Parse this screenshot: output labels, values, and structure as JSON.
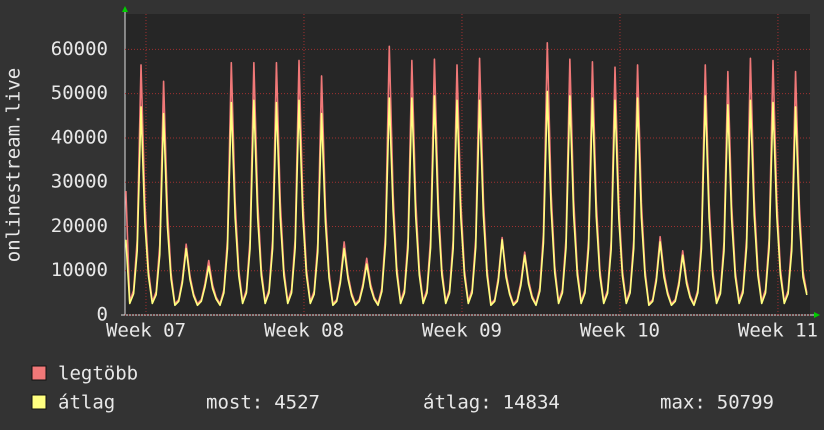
{
  "chart_data": {
    "type": "line",
    "y_label": "onlinestream.live",
    "xlim": [
      0,
      30.35
    ],
    "ylim": [
      0,
      68000
    ],
    "yticks": [
      0,
      10000,
      20000,
      30000,
      40000,
      50000,
      60000
    ],
    "xticks": [
      {
        "value": 0.93,
        "label": "Week 07"
      },
      {
        "value": 7.93,
        "label": "Week 08"
      },
      {
        "value": 14.93,
        "label": "Week 09"
      },
      {
        "value": 21.93,
        "label": "Week 10"
      },
      {
        "value": 28.93,
        "label": "Week 11"
      }
    ],
    "grid": true,
    "x": [
      0.04,
      0.21,
      0.38,
      0.54,
      0.71,
      0.88,
      1.04,
      1.21,
      1.38,
      1.54,
      1.71,
      1.88,
      2.04,
      2.21,
      2.38,
      2.54,
      2.71,
      2.88,
      3.04,
      3.21,
      3.38,
      3.54,
      3.71,
      3.88,
      4.04,
      4.21,
      4.38,
      4.54,
      4.71,
      4.88,
      5.04,
      5.21,
      5.38,
      5.54,
      5.71,
      5.88,
      6.04,
      6.21,
      6.38,
      6.54,
      6.71,
      6.88,
      7.04,
      7.21,
      7.38,
      7.54,
      7.71,
      7.88,
      8.04,
      8.21,
      8.38,
      8.54,
      8.71,
      8.88,
      9.04,
      9.21,
      9.38,
      9.54,
      9.71,
      9.88,
      10.04,
      10.21,
      10.38,
      10.54,
      10.71,
      10.88,
      11.04,
      11.21,
      11.38,
      11.54,
      11.71,
      11.88,
      12.04,
      12.21,
      12.38,
      12.54,
      12.71,
      12.88,
      13.04,
      13.21,
      13.38,
      13.54,
      13.71,
      13.88,
      14.04,
      14.21,
      14.38,
      14.54,
      14.71,
      14.88,
      15.04,
      15.21,
      15.38,
      15.54,
      15.71,
      15.88,
      16.04,
      16.21,
      16.38,
      16.54,
      16.71,
      16.88,
      17.04,
      17.21,
      17.38,
      17.54,
      17.71,
      17.88,
      18.04,
      18.21,
      18.38,
      18.54,
      18.71,
      18.88,
      19.04,
      19.21,
      19.38,
      19.54,
      19.71,
      19.88,
      20.04,
      20.21,
      20.38,
      20.54,
      20.71,
      20.88,
      21.04,
      21.21,
      21.38,
      21.54,
      21.71,
      21.88,
      22.04,
      22.21,
      22.38,
      22.54,
      22.71,
      22.88,
      23.04,
      23.21,
      23.38,
      23.54,
      23.71,
      23.88,
      24.04,
      24.21,
      24.38,
      24.54,
      24.71,
      24.88,
      25.04,
      25.21,
      25.38,
      25.54,
      25.71,
      25.88,
      26.04,
      26.21,
      26.38,
      26.54,
      26.71,
      26.88,
      27.04,
      27.21,
      27.38,
      27.54,
      27.71,
      27.88,
      28.04,
      28.21,
      28.38,
      28.54,
      28.71,
      28.88,
      29.04,
      29.21,
      29.38,
      29.54,
      29.71,
      29.88,
      30.04,
      30.21
    ],
    "series": [
      {
        "name": "legtöbb",
        "color": "#f07878",
        "values": [
          28000,
          3000,
          5600,
          17000,
          56500,
          25400,
          10200,
          3000,
          5300,
          15800,
          52800,
          23800,
          9500,
          2500,
          3500,
          8000,
          16000,
          8800,
          4800,
          2500,
          3500,
          7000,
          12300,
          6800,
          4000,
          2500,
          5700,
          17100,
          57000,
          25600,
          10300,
          3000,
          5700,
          17100,
          57000,
          25600,
          10300,
          3000,
          5700,
          17100,
          57000,
          25600,
          10300,
          3000,
          5800,
          17300,
          57500,
          25900,
          10400,
          3000,
          5400,
          16200,
          54000,
          24300,
          9700,
          2500,
          3500,
          8000,
          16500,
          9100,
          5000,
          2500,
          3500,
          7000,
          12800,
          7000,
          4000,
          2500,
          6100,
          18200,
          60700,
          27300,
          10900,
          3000,
          5800,
          17300,
          57500,
          25900,
          10400,
          3000,
          5800,
          17300,
          57800,
          26000,
          10400,
          3000,
          5700,
          17000,
          56500,
          25400,
          10200,
          3000,
          5800,
          17400,
          58000,
          26100,
          10400,
          2500,
          3500,
          8500,
          17500,
          9600,
          5200,
          2500,
          3500,
          7500,
          14200,
          7800,
          4300,
          2500,
          6200,
          18500,
          61500,
          27700,
          11100,
          3000,
          5800,
          17300,
          57800,
          26000,
          10400,
          3000,
          5700,
          17200,
          57200,
          25700,
          10300,
          3000,
          5600,
          16800,
          56000,
          25200,
          10100,
          3000,
          5700,
          17000,
          56500,
          25400,
          10200,
          2500,
          3500,
          8500,
          17700,
          9700,
          5300,
          2500,
          3500,
          7500,
          14500,
          8000,
          4400,
          2500,
          5700,
          17000,
          56500,
          25400,
          10200,
          3000,
          5500,
          16500,
          55000,
          24800,
          9900,
          3000,
          5800,
          17400,
          58000,
          26100,
          10400,
          3000,
          5800,
          17300,
          57500,
          25900,
          10400,
          3000,
          5500,
          16500,
          55000,
          24800,
          9900,
          5000
        ]
      },
      {
        "name": "átlag",
        "color": "#ffff80",
        "values": [
          17000,
          2600,
          4800,
          14500,
          47000,
          21000,
          8800,
          2600,
          4600,
          13600,
          45500,
          20000,
          8200,
          2200,
          3100,
          7200,
          15000,
          8000,
          4300,
          2200,
          3100,
          6300,
          11000,
          6000,
          3600,
          2200,
          5000,
          15000,
          48000,
          22000,
          8900,
          2600,
          5000,
          15000,
          48500,
          22000,
          8900,
          2600,
          5000,
          15000,
          48000,
          22000,
          8900,
          2600,
          5000,
          15200,
          48500,
          22300,
          9000,
          2600,
          4700,
          14200,
          45500,
          21000,
          8400,
          2200,
          3100,
          7200,
          15000,
          8200,
          4400,
          2200,
          3100,
          6300,
          11500,
          6200,
          3600,
          2200,
          5300,
          16000,
          49000,
          23500,
          9400,
          2600,
          5000,
          15200,
          49000,
          22300,
          9000,
          2600,
          5000,
          15200,
          49500,
          22500,
          9000,
          2600,
          5000,
          15000,
          48500,
          22000,
          8900,
          2600,
          5000,
          15300,
          48500,
          22500,
          9000,
          2200,
          3100,
          7600,
          17000,
          8600,
          4700,
          2200,
          3100,
          6700,
          13500,
          7000,
          3800,
          2200,
          5400,
          16300,
          50500,
          24000,
          9600,
          2600,
          5000,
          15200,
          49500,
          22500,
          9000,
          2600,
          5000,
          15100,
          49000,
          22200,
          8900,
          2600,
          4900,
          14800,
          48500,
          21800,
          8800,
          2600,
          5000,
          15000,
          49000,
          22000,
          8900,
          2200,
          3100,
          7600,
          16500,
          8600,
          4700,
          2200,
          3100,
          6700,
          13500,
          7100,
          3900,
          2200,
          5000,
          15000,
          49500,
          22000,
          8900,
          2600,
          4800,
          14500,
          47500,
          21500,
          8600,
          2600,
          5000,
          15300,
          48500,
          22500,
          9000,
          2600,
          5000,
          15200,
          48000,
          22300,
          9000,
          2600,
          4800,
          14500,
          47000,
          21500,
          8600,
          4527
        ]
      }
    ],
    "legend_stats": [
      {
        "label": "most:",
        "value": 4527
      },
      {
        "label": "átlag:",
        "value": 14834
      },
      {
        "label": "max:",
        "value": 50799
      }
    ]
  }
}
